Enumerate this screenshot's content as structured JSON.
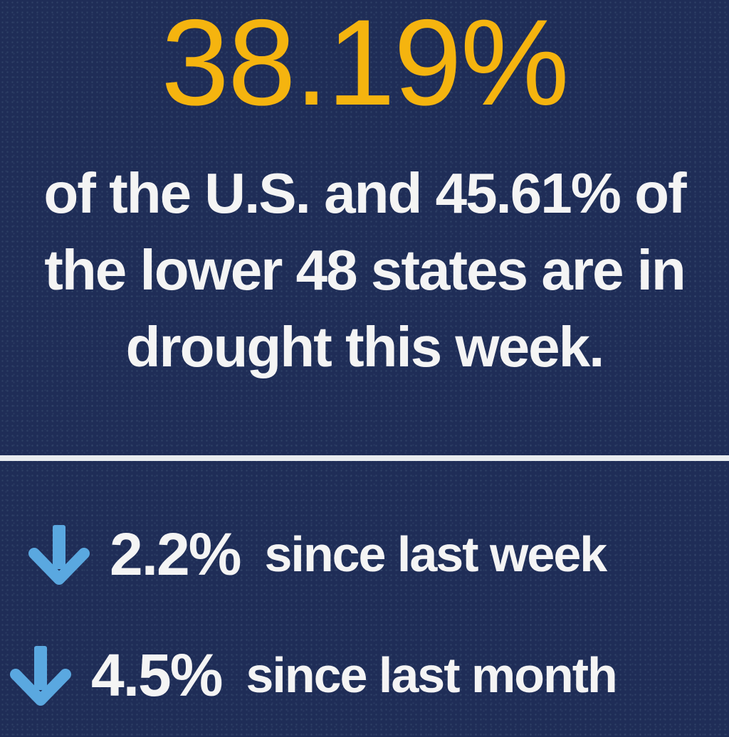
{
  "headline": {
    "percent": "38.19%"
  },
  "description": {
    "line1": "of the U.S. and 45.61% of",
    "line2": "the lower 48 states are in",
    "line3": "drought this week."
  },
  "changes": [
    {
      "icon": "arrow-down-icon",
      "value": "2.2%",
      "label": "since last week"
    },
    {
      "icon": "arrow-down-icon",
      "value": "4.5%",
      "label": "since last month"
    }
  ],
  "colors": {
    "background": "#1f2d57",
    "accent": "#f5b40f",
    "text": "#f4f4f4",
    "arrow": "#5aa8e0",
    "divider": "#e8ecef"
  }
}
